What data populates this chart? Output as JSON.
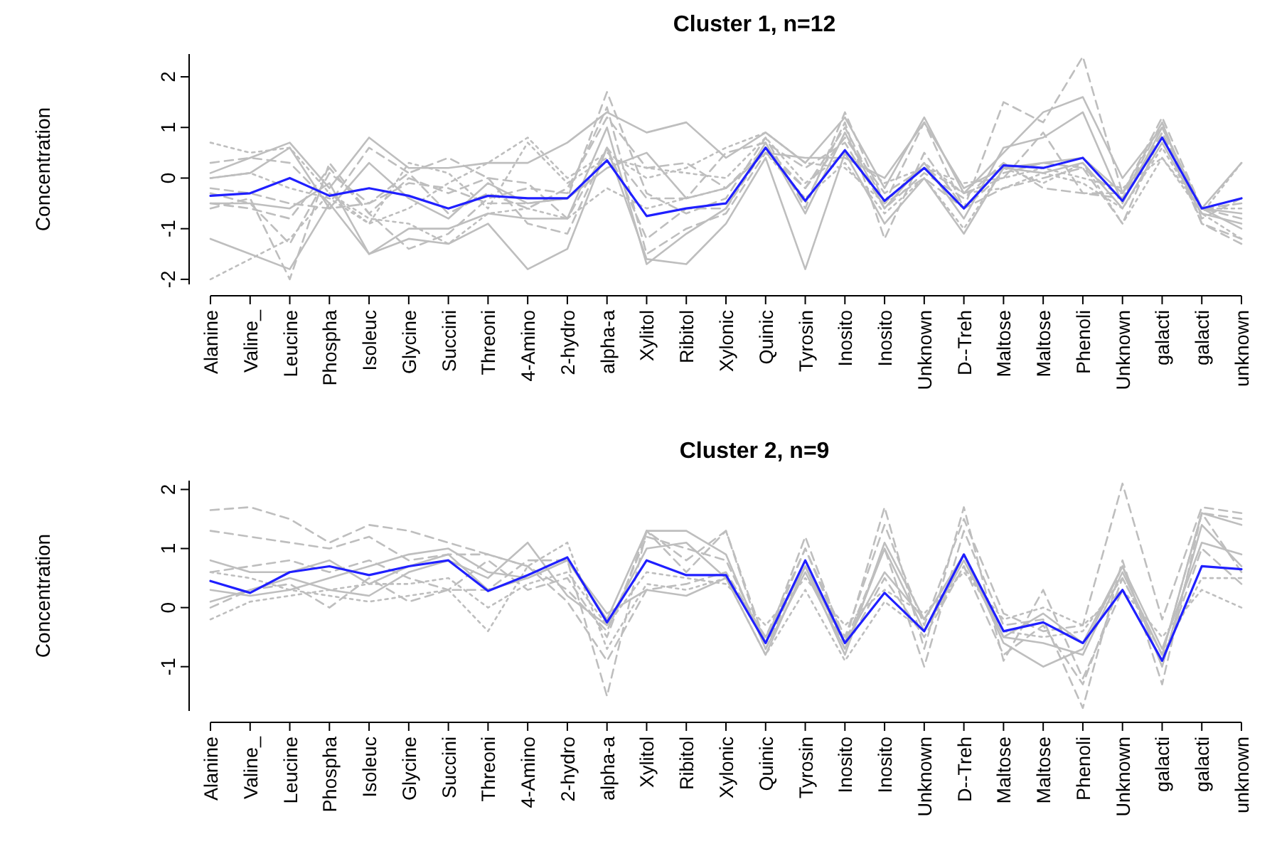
{
  "chart_data": [
    {
      "type": "line",
      "title": "Cluster 1, n=12",
      "ylabel": "Concentration",
      "categories": [
        "Alanine",
        "Valine_",
        "Leucine",
        "Phospha",
        "Isoleuc",
        "Glycine",
        "Succini",
        "Threoni",
        "4-Amino",
        "2-hydro",
        "alpha-a",
        "Xylitol",
        "Ribitol",
        "Xylonic",
        "Quinic",
        "Tyrosin",
        "Inosito",
        "Inosito",
        "Unknown",
        "D--Treh",
        "Maltose",
        "Maltose",
        "Phenoli",
        "Unknown",
        "galacti",
        "galacti",
        "unknown"
      ],
      "ylim": [
        -2.1,
        2.45
      ],
      "yticks": [
        -2,
        -1,
        0,
        1,
        2
      ],
      "grid": false,
      "series": [
        {
          "color": "#bebebe",
          "line_style": "solid",
          "values": [
            -1.2,
            -1.5,
            -1.8,
            -0.5,
            -1.5,
            -1.2,
            -1.3,
            -0.9,
            -1.8,
            -1.4,
            0.6,
            -1.6,
            -1.7,
            -0.9,
            0.4,
            -1.8,
            0.5,
            -0.9,
            0.0,
            -1.1,
            0.2,
            0.1,
            0.3,
            -0.6,
            0.7,
            -0.7,
            -0.9
          ]
        },
        {
          "color": "#bebebe",
          "line_style": "solid",
          "values": [
            0.1,
            0.4,
            0.7,
            -0.2,
            0.8,
            0.2,
            0.2,
            0.3,
            0.3,
            0.7,
            1.3,
            0.9,
            1.1,
            0.4,
            0.9,
            0.3,
            1.2,
            -0.2,
            1.2,
            -0.3,
            0.5,
            1.3,
            1.6,
            0.0,
            1.0,
            -0.6,
            0.3
          ]
        },
        {
          "color": "#bebebe",
          "line_style": "solid",
          "values": [
            -0.5,
            -0.5,
            -0.6,
            -0.1,
            -1.5,
            -1.0,
            -1.0,
            -0.7,
            -0.8,
            -0.8,
            1.0,
            -1.7,
            -1.1,
            -0.6,
            0.7,
            -0.7,
            0.9,
            -0.6,
            0.3,
            -0.8,
            0.6,
            0.8,
            1.3,
            -0.5,
            1.0,
            -0.6,
            -0.7
          ]
        },
        {
          "color": "#bebebe",
          "line_style": "solid",
          "values": [
            0.0,
            0.1,
            0.6,
            -0.6,
            0.3,
            -0.4,
            -0.8,
            -0.1,
            -0.5,
            -0.4,
            0.2,
            0.5,
            -0.4,
            -0.2,
            0.5,
            0.4,
            0.4,
            0.0,
            1.1,
            -0.2,
            0.2,
            0.3,
            0.4,
            -0.3,
            0.8,
            -0.6,
            -1.0
          ]
        },
        {
          "color": "#bebebe",
          "line_style": "dashed",
          "values": [
            -0.3,
            -0.5,
            -1.3,
            0.1,
            -0.5,
            -0.1,
            -0.2,
            -0.5,
            -0.5,
            -0.4,
            1.7,
            -0.3,
            -0.7,
            -0.4,
            0.8,
            -0.6,
            1.3,
            -0.5,
            0.0,
            -0.6,
            1.5,
            1.1,
            2.4,
            -0.3,
            1.2,
            -0.6,
            -0.5
          ]
        },
        {
          "color": "#bebebe",
          "line_style": "dashed",
          "values": [
            -0.6,
            -0.4,
            -2.0,
            0.3,
            -0.7,
            -1.4,
            -1.1,
            -0.4,
            -0.2,
            -0.3,
            1.4,
            -1.5,
            -1.0,
            -0.7,
            0.5,
            -0.2,
            0.8,
            -0.3,
            0.2,
            -0.3,
            0.0,
            0.9,
            -0.3,
            -0.3,
            1.1,
            -0.9,
            -1.3
          ]
        },
        {
          "color": "#bebebe",
          "line_style": "dashed",
          "values": [
            0.3,
            0.4,
            0.3,
            -0.5,
            0.6,
            0.1,
            -0.7,
            -0.3,
            -0.6,
            -0.2,
            1.2,
            0.2,
            0.3,
            -0.2,
            0.6,
            -0.5,
            1.1,
            -1.2,
            0.5,
            -0.6,
            0.1,
            0.3,
            0.2,
            -0.4,
            1.1,
            -0.8,
            -0.4
          ]
        },
        {
          "color": "#bebebe",
          "line_style": "dashed",
          "values": [
            -0.5,
            -0.6,
            -0.8,
            0.2,
            -0.7,
            0.0,
            -0.3,
            0.0,
            -0.9,
            -1.1,
            0.6,
            -1.2,
            -0.6,
            -0.6,
            0.6,
            -0.2,
            1.0,
            -0.5,
            1.1,
            -0.6,
            -0.2,
            0.0,
            0.2,
            -0.9,
            0.9,
            -0.9,
            -1.2
          ]
        },
        {
          "color": "#bebebe",
          "line_style": "dotted",
          "values": [
            0.7,
            0.5,
            0.6,
            -0.3,
            -0.9,
            0.3,
            0.1,
            -0.6,
            0.7,
            -0.1,
            0.4,
            0.2,
            0.1,
            0.0,
            0.8,
            -0.1,
            0.5,
            -0.1,
            0.2,
            -0.1,
            0.0,
            0.2,
            0.0,
            -0.2,
            0.4,
            -0.6,
            -0.6
          ]
        },
        {
          "color": "#bebebe",
          "line_style": "dotted",
          "values": [
            -2.0,
            -1.6,
            -1.2,
            -0.3,
            -0.8,
            -0.9,
            -1.3,
            -0.7,
            -0.6,
            -0.8,
            -0.2,
            -0.6,
            -0.4,
            -0.2,
            0.5,
            -0.4,
            0.3,
            -0.7,
            0.0,
            -1.0,
            0.2,
            -0.1,
            0.3,
            -0.9,
            0.4,
            -0.7,
            -1.2
          ]
        },
        {
          "color": "#bebebe",
          "line_style": "dotted",
          "values": [
            0.0,
            0.1,
            -0.2,
            -0.4,
            -0.9,
            -0.6,
            -0.1,
            0.3,
            0.8,
            0.0,
            0.5,
            0.0,
            0.2,
            0.6,
            0.9,
            0.3,
            0.2,
            -0.5,
            0.3,
            -0.3,
            -0.2,
            0.1,
            -0.1,
            -0.6,
            0.6,
            -0.7,
            0.3
          ]
        },
        {
          "color": "#bebebe",
          "line_style": "dashed",
          "values": [
            -0.2,
            -0.3,
            -0.5,
            -0.6,
            -0.5,
            0.1,
            0.4,
            0.0,
            -0.1,
            -0.8,
            0.6,
            -0.4,
            -0.4,
            0.5,
            0.7,
            0.2,
            0.7,
            -0.6,
            0.1,
            -0.4,
            0.3,
            -0.2,
            -0.3,
            -0.4,
            0.9,
            -0.6,
            -0.8
          ]
        },
        {
          "color": "#1f1fff",
          "line_style": "solid",
          "values": [
            -0.35,
            -0.3,
            0.0,
            -0.35,
            -0.2,
            -0.35,
            -0.6,
            -0.35,
            -0.4,
            -0.4,
            0.35,
            -0.75,
            -0.6,
            -0.5,
            0.6,
            -0.45,
            0.55,
            -0.45,
            0.2,
            -0.6,
            0.25,
            0.2,
            0.4,
            -0.45,
            0.8,
            -0.6,
            -0.4
          ]
        }
      ]
    },
    {
      "type": "line",
      "title": "Cluster 2, n=9",
      "ylabel": "Concentration",
      "categories": [
        "Alanine",
        "Valine_",
        "Leucine",
        "Phospha",
        "Isoleuc",
        "Glycine",
        "Succini",
        "Threoni",
        "4-Amino",
        "2-hydro",
        "alpha-a",
        "Xylitol",
        "Ribitol",
        "Xylonic",
        "Quinic",
        "Tyrosin",
        "Inosito",
        "Inosito",
        "Unknown",
        "D--Treh",
        "Maltose",
        "Maltose",
        "Phenoli",
        "Unknown",
        "galacti",
        "galacti",
        "unknown"
      ],
      "ylim": [
        -1.75,
        2.15
      ],
      "yticks": [
        -1,
        0,
        1,
        2
      ],
      "grid": false,
      "series": [
        {
          "color": "#bebebe",
          "line_style": "solid",
          "values": [
            0.8,
            0.6,
            0.6,
            0.8,
            0.4,
            0.7,
            0.9,
            0.3,
            0.5,
            0.8,
            -0.2,
            1.3,
            1.3,
            0.9,
            -0.7,
            0.6,
            -0.7,
            1.0,
            -0.4,
            0.8,
            -0.5,
            -0.6,
            -0.8,
            0.6,
            -0.8,
            1.6,
            1.4
          ]
        },
        {
          "color": "#bebebe",
          "line_style": "solid",
          "values": [
            0.1,
            0.3,
            0.5,
            0.3,
            0.2,
            0.6,
            0.8,
            0.5,
            1.1,
            0.2,
            -0.3,
            1.0,
            1.1,
            0.5,
            -0.5,
            0.7,
            -0.6,
            0.6,
            -0.2,
            0.9,
            -0.5,
            -0.1,
            -0.6,
            0.7,
            -0.7,
            1.1,
            0.9
          ]
        },
        {
          "color": "#bebebe",
          "line_style": "solid",
          "values": [
            0.3,
            0.2,
            0.3,
            0.5,
            0.7,
            0.9,
            1.0,
            0.6,
            0.5,
            0.8,
            -0.1,
            0.3,
            0.2,
            0.5,
            -0.8,
            0.7,
            -0.8,
            1.1,
            -0.2,
            0.9,
            -0.6,
            -1.0,
            -0.7,
            0.7,
            -1.0,
            1.4,
            0.7
          ]
        },
        {
          "color": "#bebebe",
          "line_style": "dashed",
          "values": [
            1.65,
            1.7,
            1.5,
            1.1,
            1.4,
            1.3,
            1.1,
            0.9,
            0.7,
            0.3,
            -0.4,
            1.2,
            1.0,
            0.8,
            -0.6,
            1.0,
            -0.5,
            1.4,
            -0.3,
            1.5,
            -0.1,
            -0.4,
            -0.3,
            2.1,
            -0.2,
            1.7,
            1.6
          ]
        },
        {
          "color": "#bebebe",
          "line_style": "dashed",
          "values": [
            0.0,
            0.3,
            0.4,
            0.0,
            0.5,
            0.1,
            0.3,
            0.3,
            0.8,
            0.8,
            -1.5,
            1.3,
            0.8,
            1.3,
            -0.6,
            1.2,
            -0.6,
            1.7,
            -0.7,
            1.7,
            -0.9,
            0.3,
            -1.2,
            0.3,
            -0.9,
            1.0,
            0.4
          ]
        },
        {
          "color": "#bebebe",
          "line_style": "dashed",
          "values": [
            0.6,
            0.7,
            0.8,
            0.6,
            0.8,
            0.5,
            0.3,
            0.8,
            0.3,
            0.5,
            -0.5,
            1.3,
            0.6,
            1.3,
            -0.7,
            0.8,
            -0.7,
            0.5,
            -0.5,
            0.7,
            -0.8,
            -0.3,
            -1.3,
            0.5,
            -0.8,
            1.6,
            1.5
          ]
        },
        {
          "color": "#bebebe",
          "line_style": "dashed",
          "values": [
            1.3,
            1.2,
            1.1,
            1.0,
            1.2,
            0.8,
            0.9,
            0.9,
            0.7,
            0.1,
            -0.9,
            0.3,
            0.4,
            0.6,
            -0.5,
            1.0,
            -0.6,
            1.0,
            -1.0,
            1.3,
            -0.3,
            -0.2,
            -1.7,
            0.8,
            -1.3,
            1.6,
            0.6
          ]
        },
        {
          "color": "#bebebe",
          "line_style": "dotted",
          "values": [
            0.6,
            0.5,
            0.3,
            0.2,
            0.1,
            0.2,
            0.3,
            -0.4,
            0.7,
            1.1,
            -0.7,
            0.4,
            0.3,
            0.5,
            -0.8,
            0.3,
            -0.9,
            0.1,
            -0.4,
            0.7,
            -0.4,
            -0.5,
            -0.4,
            0.5,
            -0.8,
            0.5,
            0.5
          ]
        },
        {
          "color": "#bebebe",
          "line_style": "dotted",
          "values": [
            -0.2,
            0.1,
            0.2,
            0.3,
            0.4,
            0.4,
            0.5,
            0.0,
            0.4,
            0.6,
            -0.3,
            0.6,
            0.5,
            0.4,
            -0.3,
            0.5,
            -0.3,
            0.3,
            -0.1,
            0.6,
            -0.2,
            0.0,
            -0.3,
            0.3,
            -0.5,
            0.3,
            0.0
          ]
        },
        {
          "color": "#1f1fff",
          "line_style": "solid",
          "values": [
            0.45,
            0.25,
            0.6,
            0.7,
            0.55,
            0.7,
            0.8,
            0.28,
            0.55,
            0.85,
            -0.25,
            0.8,
            0.55,
            0.55,
            -0.6,
            0.8,
            -0.6,
            0.25,
            -0.4,
            0.9,
            -0.4,
            -0.25,
            -0.6,
            0.3,
            -0.9,
            0.7,
            0.65
          ]
        }
      ]
    }
  ]
}
